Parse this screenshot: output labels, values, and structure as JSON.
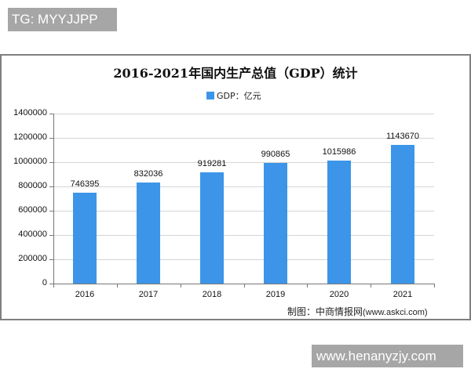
{
  "overlays": {
    "top_tag": "TG: MYYJJPP",
    "bottom_tag": "www.henanyzjy.com"
  },
  "chart": {
    "title": "2016-2021年国内生产总值（GDP）统计",
    "legend_label": "GDP：亿元",
    "bar_color": "#3c95e8",
    "source_label": "制图：中商情报网",
    "source_url": "(www.askci.com)"
  },
  "chart_data": {
    "type": "bar",
    "title": "2016-2021年国内生产总值（GDP）统计",
    "xlabel": "",
    "ylabel": "",
    "categories": [
      "2016",
      "2017",
      "2018",
      "2019",
      "2020",
      "2021"
    ],
    "series": [
      {
        "name": "GDP：亿元",
        "values": [
          746395,
          832036,
          919281,
          990865,
          1015986,
          1143670
        ]
      }
    ],
    "values": [
      746395,
      832036,
      919281,
      990865,
      1015986,
      1143670
    ],
    "ylim": [
      0,
      1400000
    ],
    "yticks": [
      "0",
      "200000",
      "400000",
      "600000",
      "800000",
      "1000000",
      "1200000",
      "1400000"
    ],
    "grid": true,
    "legend_position": "top",
    "data_labels": true
  }
}
